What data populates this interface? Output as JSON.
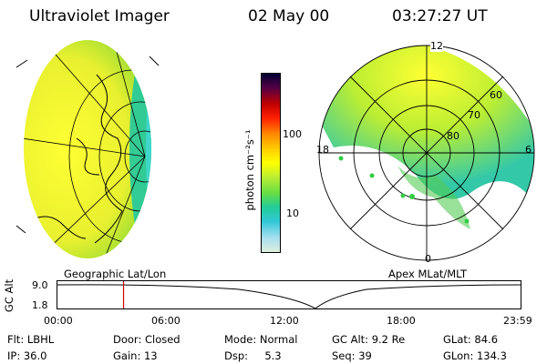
{
  "header": {
    "instrument": "Ultraviolet Imager",
    "date": "02 May 00",
    "time": "03:27:27 UT"
  },
  "colorbar": {
    "unit_label": "photon cm⁻²s⁻¹",
    "ticks": [
      "100",
      "10"
    ],
    "colors": [
      "#000033",
      "#550044",
      "#c00000",
      "#ff2000",
      "#ff8000",
      "#ffcc00",
      "#ffff00",
      "#bbee33",
      "#66dd44",
      "#22cc99",
      "#33c8d8",
      "#a8dff0",
      "#ddeedd"
    ]
  },
  "polar_plot": {
    "mlt_labels": {
      "top": "12",
      "left": "18",
      "right": "6",
      "bottom": "0"
    },
    "lat_labels": [
      "60",
      "70",
      "80"
    ]
  },
  "map_labels": {
    "left": "Geographic Lat/Lon",
    "right": "Apex MLat/MLT"
  },
  "altitude_plot": {
    "axis_label": "GC Alt",
    "y_ticks": [
      "9.0",
      "1.8"
    ],
    "x_ticks": [
      "00:00",
      "06:00",
      "12:00",
      "18:00",
      "23:59"
    ],
    "current_time_hours": 3.46,
    "marker_color": "#cc0000"
  },
  "status": {
    "row1": [
      {
        "label": "Flt:",
        "value": "LBHL"
      },
      {
        "label": "Door:",
        "value": "Closed"
      },
      {
        "label": "Mode:",
        "value": "Normal"
      },
      {
        "label": "GC Alt:",
        "value": "9.2 Re"
      },
      {
        "label": "GLat:",
        "value": "84.6"
      }
    ],
    "row2": [
      {
        "label": "IP:",
        "value": "36.0"
      },
      {
        "label": "Gain:",
        "value": "13"
      },
      {
        "label": "Dsp:",
        "value": "5.3"
      },
      {
        "label": "Seq:",
        "value": "39"
      },
      {
        "label": "GLon:",
        "value": "134.3"
      }
    ]
  }
}
